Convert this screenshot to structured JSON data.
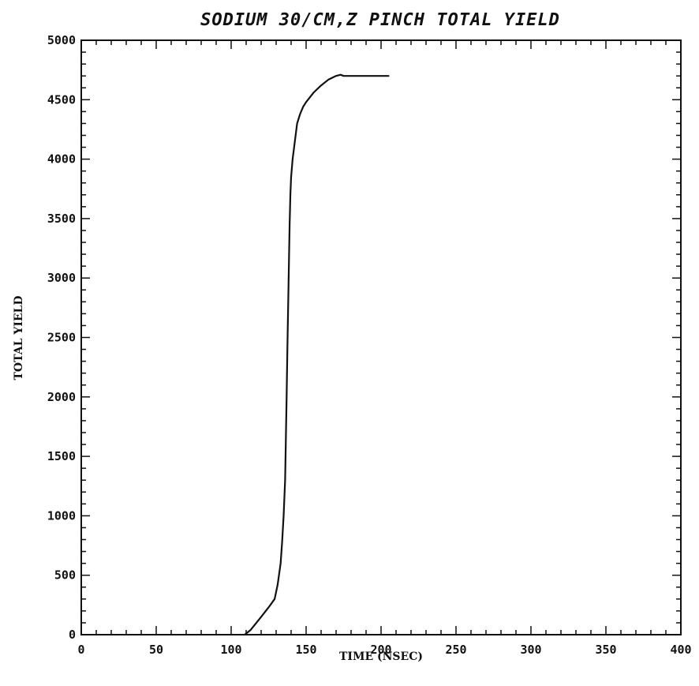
{
  "chart_data": {
    "type": "line",
    "title": "SODIUM 30/CM,Z PINCH TOTAL YIELD",
    "xlabel": "TIME (NSEC)",
    "ylabel": "TOTAL YIELD",
    "xlim": [
      0,
      400
    ],
    "ylim": [
      0,
      5000
    ],
    "x_ticks": [
      0,
      50,
      100,
      150,
      200,
      250,
      300,
      350,
      400
    ],
    "y_ticks": [
      0,
      500,
      1000,
      1500,
      2000,
      2500,
      3000,
      3500,
      4000,
      4500,
      5000
    ],
    "x_tick_labels": [
      "0",
      "50",
      "100",
      "150",
      "200",
      "250",
      "300",
      "350",
      "400"
    ],
    "y_tick_labels": [
      "0",
      "500",
      "1000",
      "1500",
      "2000",
      "2500",
      "3000",
      "3500",
      "4000",
      "4500",
      "5000"
    ],
    "grid": false,
    "series": [
      {
        "x": [
          109,
          113,
          120,
          125,
          129,
          131,
          133,
          134,
          135,
          136,
          136.5,
          137,
          137.5,
          138,
          138.5,
          139,
          139.5,
          140,
          141,
          142,
          143,
          144,
          146,
          148,
          150,
          155,
          160,
          165,
          170,
          173,
          175,
          180,
          190,
          200,
          205
        ],
        "y": [
          0,
          40,
          150,
          230,
          300,
          420,
          600,
          780,
          1000,
          1300,
          1650,
          2000,
          2400,
          2750,
          3100,
          3450,
          3700,
          3850,
          4000,
          4100,
          4200,
          4300,
          4380,
          4440,
          4480,
          4560,
          4620,
          4670,
          4700,
          4710,
          4700,
          4700,
          4700,
          4700,
          4700
        ]
      }
    ]
  }
}
